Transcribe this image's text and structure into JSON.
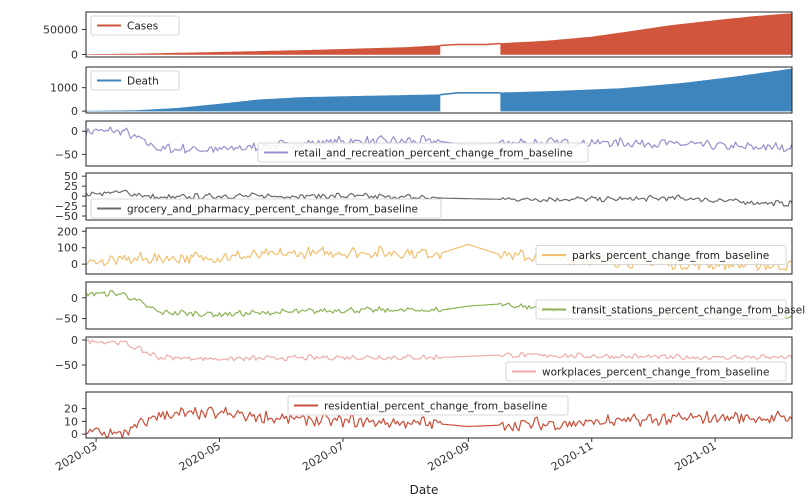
{
  "figure": {
    "xlabel": "Date",
    "date_ticks": [
      {
        "label": "2020-03",
        "date": "2020-03-01"
      },
      {
        "label": "2020-05",
        "date": "2020-05-01"
      },
      {
        "label": "2020-07",
        "date": "2020-07-01"
      },
      {
        "label": "2020-09",
        "date": "2020-09-01"
      },
      {
        "label": "2020-11",
        "date": "2020-11-01"
      },
      {
        "label": "2021-01",
        "date": "2021-01-01"
      }
    ]
  },
  "chart_data": [
    {
      "type": "area",
      "series_name": "Cases",
      "color": "#d0553c",
      "legend": "top-left",
      "ylim": [
        -5000,
        85000
      ],
      "yticks": [
        0,
        50000
      ],
      "ytick_labels": [
        "0",
        "50000"
      ],
      "x_range": [
        "2020-02-25",
        "2021-02-08"
      ],
      "points": [
        [
          "2020-02-25",
          0
        ],
        [
          "2020-03-20",
          1000
        ],
        [
          "2020-05-01",
          4500
        ],
        [
          "2020-06-15",
          8500
        ],
        [
          "2020-08-01",
          14000
        ],
        [
          "2020-08-18",
          18000
        ],
        [
          "2020-08-26",
          20000
        ],
        [
          "2020-09-04",
          20000
        ],
        [
          "2020-09-10",
          20000
        ],
        [
          "2020-09-17",
          22000
        ],
        [
          "2020-10-10",
          27000
        ],
        [
          "2020-11-01",
          35000
        ],
        [
          "2020-11-20",
          46000
        ],
        [
          "2020-12-10",
          58000
        ],
        [
          "2021-01-01",
          68000
        ],
        [
          "2021-01-20",
          76000
        ],
        [
          "2021-02-08",
          82000
        ]
      ],
      "gap": [
        "2020-08-19",
        "2020-09-16"
      ]
    },
    {
      "type": "area",
      "series_name": "Death",
      "color": "#3f85bd",
      "legend": "top-left",
      "ylim": [
        -80,
        1880
      ],
      "yticks": [
        0,
        1000
      ],
      "ytick_labels": [
        "0",
        "1000"
      ],
      "x_range": [
        "2020-02-25",
        "2021-02-08"
      ],
      "points": [
        [
          "2020-02-25",
          0
        ],
        [
          "2020-03-20",
          20
        ],
        [
          "2020-04-10",
          120
        ],
        [
          "2020-05-01",
          300
        ],
        [
          "2020-05-20",
          480
        ],
        [
          "2020-06-10",
          580
        ],
        [
          "2020-07-01",
          620
        ],
        [
          "2020-08-18",
          700
        ],
        [
          "2020-08-27",
          780
        ],
        [
          "2020-09-03",
          780
        ],
        [
          "2020-09-17",
          780
        ],
        [
          "2020-10-15",
          850
        ],
        [
          "2020-11-15",
          960
        ],
        [
          "2020-12-15",
          1180
        ],
        [
          "2021-01-10",
          1450
        ],
        [
          "2021-02-08",
          1800
        ]
      ],
      "gap": [
        "2020-08-19",
        "2020-09-16"
      ]
    },
    {
      "type": "line",
      "series_name": "retail_and_recreation_percent_change_from_baseline",
      "color": "#9b8ecf",
      "legend": "lower-center",
      "ylim": [
        -75,
        22
      ],
      "yticks": [
        -50,
        0
      ],
      "ytick_labels": [
        "−50",
        "0"
      ],
      "x_range": [
        "2020-02-25",
        "2021-02-08"
      ],
      "points": [
        [
          "2020-02-25",
          0
        ],
        [
          "2020-03-14",
          0
        ],
        [
          "2020-04-01",
          -38
        ],
        [
          "2020-05-01",
          -40
        ],
        [
          "2020-06-01",
          -30
        ],
        [
          "2020-07-01",
          -22
        ],
        [
          "2020-08-18",
          -22
        ],
        [
          "2020-09-01",
          -30
        ],
        [
          "2020-09-16",
          -25
        ],
        [
          "2020-10-15",
          -25
        ],
        [
          "2020-11-15",
          -25
        ],
        [
          "2020-12-15",
          -28
        ],
        [
          "2021-01-15",
          -35
        ],
        [
          "2021-02-08",
          -35
        ]
      ],
      "noise": 10,
      "gap": [
        "2020-08-19",
        "2020-09-16"
      ]
    },
    {
      "type": "line",
      "series_name": "grocery_and_pharmacy_percent_change_from_baseline",
      "color": "#6b6b6b",
      "legend": "lower-left",
      "ylim": [
        -60,
        58
      ],
      "yticks": [
        -50,
        -25,
        0,
        25,
        50
      ],
      "ytick_labels": [
        "−50",
        "−25",
        "0",
        "25",
        "50"
      ],
      "x_range": [
        "2020-02-25",
        "2021-02-08"
      ],
      "points": [
        [
          "2020-02-25",
          5
        ],
        [
          "2020-03-14",
          10
        ],
        [
          "2020-04-01",
          -5
        ],
        [
          "2020-05-01",
          0
        ],
        [
          "2020-07-01",
          0
        ],
        [
          "2020-08-18",
          -5
        ],
        [
          "2020-09-16",
          -8
        ],
        [
          "2020-11-15",
          -8
        ],
        [
          "2020-12-15",
          -5
        ],
        [
          "2021-01-15",
          -15
        ],
        [
          "2021-02-08",
          -20
        ]
      ],
      "noise": 7,
      "gap": [
        "2020-08-19",
        "2020-09-16"
      ]
    },
    {
      "type": "line",
      "series_name": "parks_percent_change_from_baseline",
      "color": "#f2c06e",
      "legend": "right",
      "ylim": [
        -60,
        220
      ],
      "yticks": [
        0,
        100,
        200
      ],
      "ytick_labels": [
        "0",
        "100",
        "200"
      ],
      "x_range": [
        "2020-02-25",
        "2021-02-08"
      ],
      "points": [
        [
          "2020-02-25",
          10
        ],
        [
          "2020-03-20",
          30
        ],
        [
          "2020-05-01",
          40
        ],
        [
          "2020-06-01",
          60
        ],
        [
          "2020-07-01",
          70
        ],
        [
          "2020-08-18",
          65
        ],
        [
          "2020-09-01",
          120
        ],
        [
          "2020-09-16",
          60
        ],
        [
          "2020-10-15",
          30
        ],
        [
          "2020-11-15",
          10
        ],
        [
          "2020-12-15",
          0
        ],
        [
          "2021-02-08",
          -10
        ]
      ],
      "noise": 35,
      "gap": [
        "2020-08-19",
        "2020-09-16"
      ]
    },
    {
      "type": "line",
      "series_name": "transit_stations_percent_change_from_baseline",
      "color": "#8db355",
      "legend": "right",
      "ylim": [
        -75,
        38
      ],
      "yticks": [
        -50,
        0
      ],
      "ytick_labels": [
        "−50",
        "0"
      ],
      "x_range": [
        "2020-02-25",
        "2021-02-08"
      ],
      "points": [
        [
          "2020-02-25",
          10
        ],
        [
          "2020-03-14",
          10
        ],
        [
          "2020-04-01",
          -35
        ],
        [
          "2020-05-01",
          -40
        ],
        [
          "2020-06-01",
          -35
        ],
        [
          "2020-07-01",
          -30
        ],
        [
          "2020-08-18",
          -30
        ],
        [
          "2020-09-01",
          -20
        ],
        [
          "2020-09-16",
          -15
        ],
        [
          "2020-10-15",
          -30
        ],
        [
          "2020-11-15",
          -35
        ],
        [
          "2020-12-15",
          -40
        ],
        [
          "2021-02-08",
          -45
        ]
      ],
      "noise": 7,
      "gap": [
        "2020-08-19",
        "2020-09-16"
      ]
    },
    {
      "type": "line",
      "series_name": "workplaces_percent_change_from_baseline",
      "color": "#f0acab",
      "legend": "lower-right",
      "ylim": [
        -88,
        6
      ],
      "yticks": [
        -50,
        0
      ],
      "ytick_labels": [
        "−50",
        "0"
      ],
      "x_range": [
        "2020-02-25",
        "2021-02-08"
      ],
      "points": [
        [
          "2020-02-25",
          -2
        ],
        [
          "2020-03-14",
          -5
        ],
        [
          "2020-04-01",
          -35
        ],
        [
          "2020-05-01",
          -38
        ],
        [
          "2020-07-01",
          -35
        ],
        [
          "2020-08-18",
          -35
        ],
        [
          "2020-09-16",
          -30
        ],
        [
          "2020-11-15",
          -33
        ],
        [
          "2020-12-15",
          -35
        ],
        [
          "2021-02-08",
          -35
        ]
      ],
      "noise": 5,
      "gap": [
        "2020-08-19",
        "2020-09-16"
      ]
    },
    {
      "type": "line",
      "series_name": "residential_percent_change_from_baseline",
      "color": "#c9503a",
      "legend": "top-center",
      "ylim": [
        -3,
        33
      ],
      "yticks": [
        0,
        10,
        20
      ],
      "ytick_labels": [
        "0",
        "10",
        "20"
      ],
      "x_range": [
        "2020-02-25",
        "2021-02-08"
      ],
      "points": [
        [
          "2020-02-25",
          2
        ],
        [
          "2020-03-14",
          0
        ],
        [
          "2020-04-01",
          15
        ],
        [
          "2020-05-01",
          16
        ],
        [
          "2020-06-01",
          12
        ],
        [
          "2020-07-01",
          10
        ],
        [
          "2020-08-18",
          8
        ],
        [
          "2020-09-01",
          6
        ],
        [
          "2020-09-16",
          7
        ],
        [
          "2020-10-15",
          8
        ],
        [
          "2020-11-15",
          10
        ],
        [
          "2020-12-15",
          12
        ],
        [
          "2021-01-10",
          13
        ],
        [
          "2021-02-08",
          12
        ]
      ],
      "noise": 5,
      "gap": [
        "2020-08-19",
        "2020-09-16"
      ]
    }
  ]
}
